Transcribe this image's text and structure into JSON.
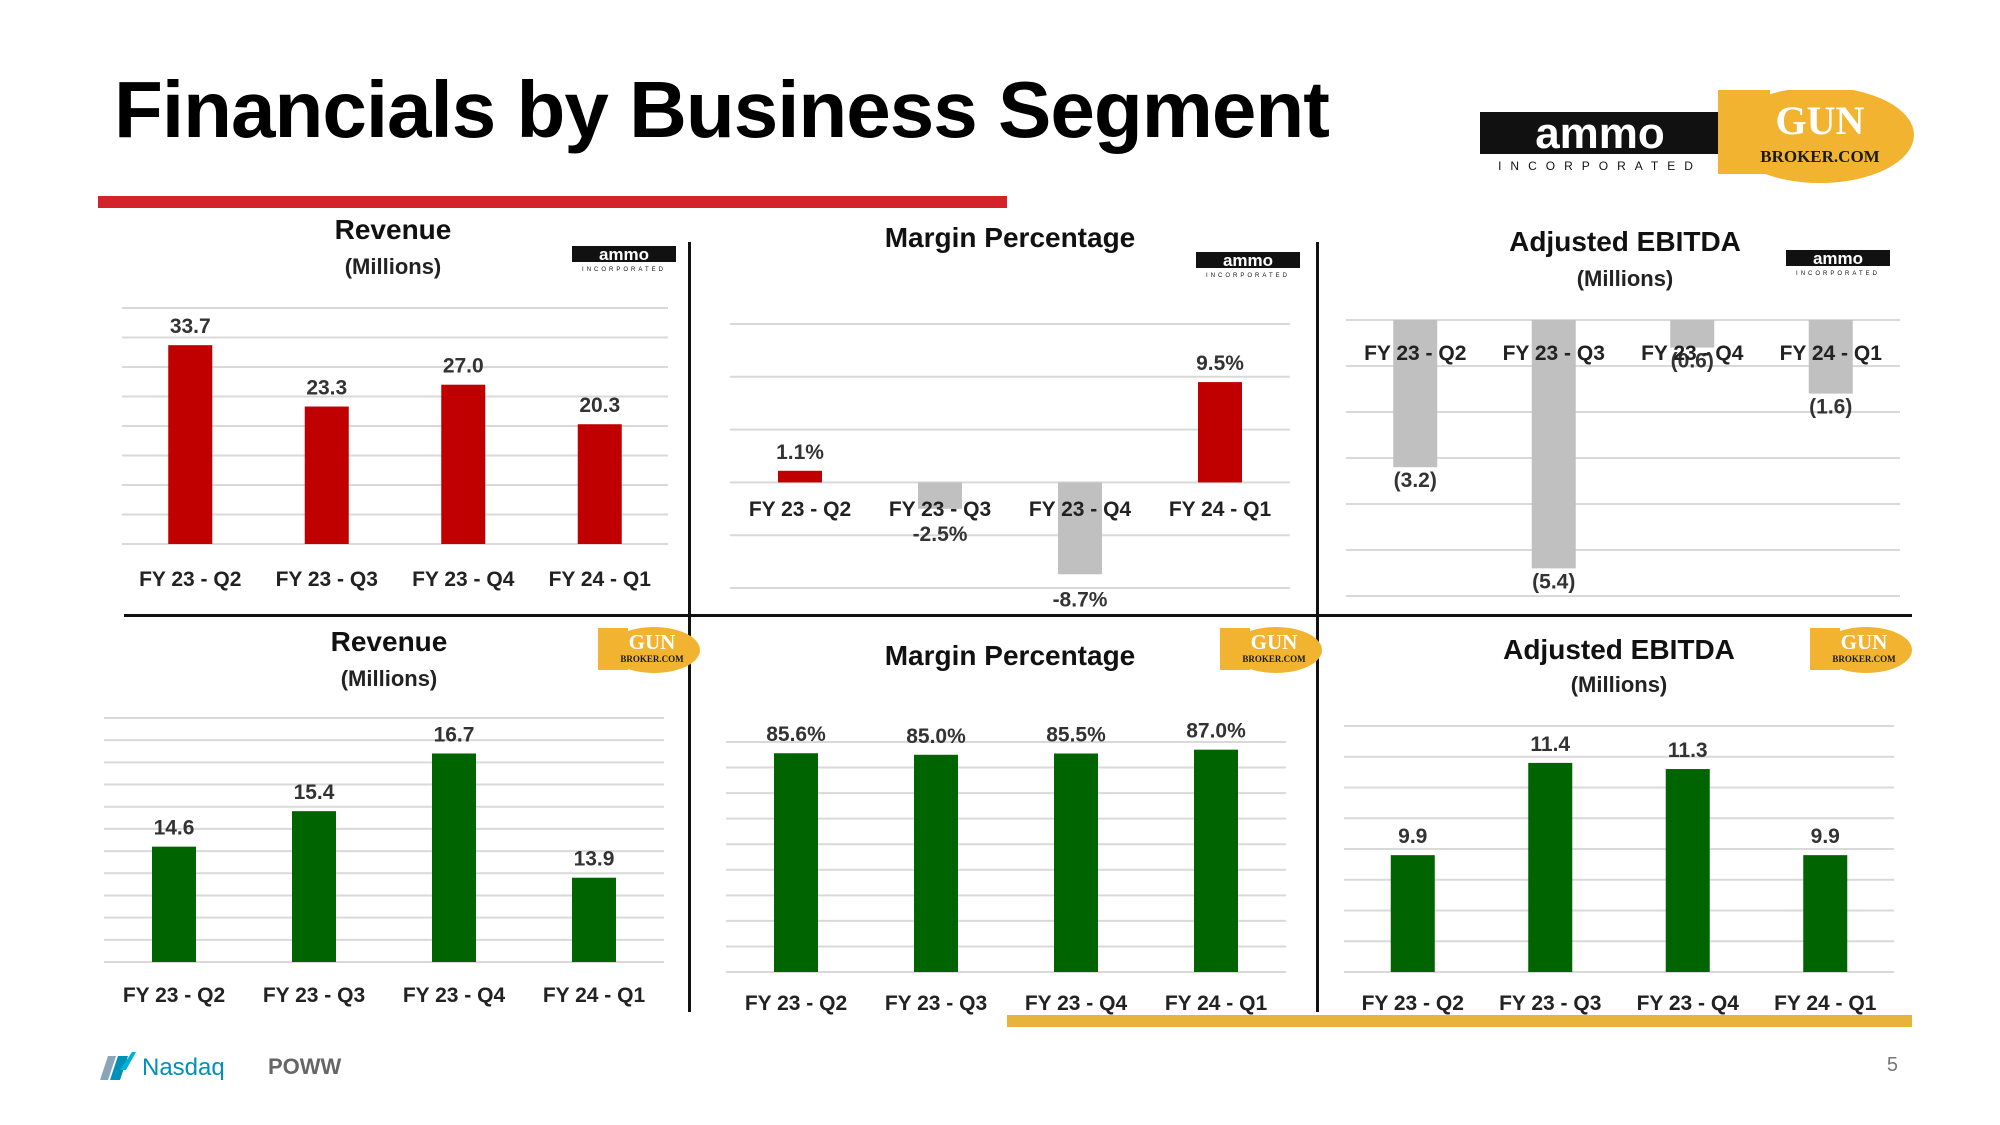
{
  "page": {
    "title": "Financials by Business Segment",
    "page_number": "5",
    "ticker": "POWW",
    "exchange": "Nasdaq"
  },
  "brands": {
    "ammo": {
      "wordmark": "ammo",
      "tagline": "INCORPORATED"
    },
    "gunbroker": {
      "line1": "GUN",
      "line2": "BROKER.COM"
    }
  },
  "colors": {
    "ammo_bar": "#c00000",
    "negative_bar": "#c0c0c0",
    "gunbroker_bar": "#006400",
    "red_rule": "#d2232a",
    "gold_rule": "#e8b33a",
    "gunbroker_logo": "#f2b430"
  },
  "chart_data": [
    {
      "id": "ammo-revenue",
      "type": "bar",
      "brand": "ammo",
      "title": "Revenue",
      "subtitle": "(Millions)",
      "categories": [
        "FY 23 - Q2",
        "FY 23 - Q3",
        "FY 23 - Q4",
        "FY 24 - Q1"
      ],
      "values": [
        33.7,
        23.3,
        27.0,
        20.3
      ],
      "labels": [
        "33.7",
        "23.3",
        "27.0",
        "20.3"
      ],
      "ylim": [
        0,
        40
      ],
      "grid_step": 5,
      "color": "#c00000",
      "neg_color": "#c0c0c0"
    },
    {
      "id": "ammo-margin",
      "type": "bar",
      "brand": "ammo",
      "title": "Margin Percentage",
      "subtitle": "",
      "categories": [
        "FY 23 - Q2",
        "FY 23 - Q3",
        "FY 23 - Q4",
        "FY 24 - Q1"
      ],
      "values": [
        1.1,
        -2.5,
        -8.7,
        9.5
      ],
      "labels": [
        "1.1%",
        "-2.5%",
        "-8.7%",
        "9.5%"
      ],
      "ylim": [
        -10,
        15
      ],
      "grid_step": 5,
      "color": "#c00000",
      "neg_color": "#c0c0c0"
    },
    {
      "id": "ammo-ebitda",
      "type": "bar",
      "brand": "ammo",
      "title": "Adjusted EBITDA",
      "subtitle": "(Millions)",
      "categories": [
        "FY 23 - Q2",
        "FY 23 - Q3",
        "FY 23 - Q4",
        "FY 24 - Q1"
      ],
      "values": [
        -3.2,
        -5.4,
        -0.6,
        -1.6
      ],
      "labels": [
        "(3.2)",
        "(5.4)",
        "(0.6)",
        "(1.6)"
      ],
      "ylim": [
        -6,
        0
      ],
      "grid_step": 1,
      "color": "#c00000",
      "neg_color": "#c0c0c0"
    },
    {
      "id": "gb-revenue",
      "type": "bar",
      "brand": "gunbroker",
      "title": "Revenue",
      "subtitle": "(Millions)",
      "categories": [
        "FY 23 - Q2",
        "FY 23 - Q3",
        "FY 23 - Q4",
        "FY 24 - Q1"
      ],
      "values": [
        14.6,
        15.4,
        16.7,
        13.9
      ],
      "labels": [
        "14.6",
        "15.4",
        "16.7",
        "13.9"
      ],
      "ylim": [
        12,
        17.5
      ],
      "grid_step": 0.5,
      "color": "#006400",
      "neg_color": "#c0c0c0"
    },
    {
      "id": "gb-margin",
      "type": "bar",
      "brand": "gunbroker",
      "title": "Margin Percentage",
      "subtitle": "",
      "categories": [
        "FY 23 - Q2",
        "FY 23 - Q3",
        "FY 23 - Q4",
        "FY 24 - Q1"
      ],
      "values": [
        85.6,
        85.0,
        85.5,
        87.0
      ],
      "labels": [
        "85.6%",
        "85.0%",
        "85.5%",
        "87.0%"
      ],
      "ylim": [
        0,
        90
      ],
      "grid_step": 10,
      "color": "#006400",
      "neg_color": "#c0c0c0"
    },
    {
      "id": "gb-ebitda",
      "type": "bar",
      "brand": "gunbroker",
      "title": "Adjusted EBITDA",
      "subtitle": "(Millions)",
      "categories": [
        "FY 23 - Q2",
        "FY 23 - Q3",
        "FY 23 - Q4",
        "FY 24 - Q1"
      ],
      "values": [
        9.9,
        11.4,
        11.3,
        9.9
      ],
      "labels": [
        "9.9",
        "11.4",
        "11.3",
        "9.9"
      ],
      "ylim": [
        8,
        12
      ],
      "grid_step": 0.5,
      "color": "#006400",
      "neg_color": "#c0c0c0"
    }
  ]
}
